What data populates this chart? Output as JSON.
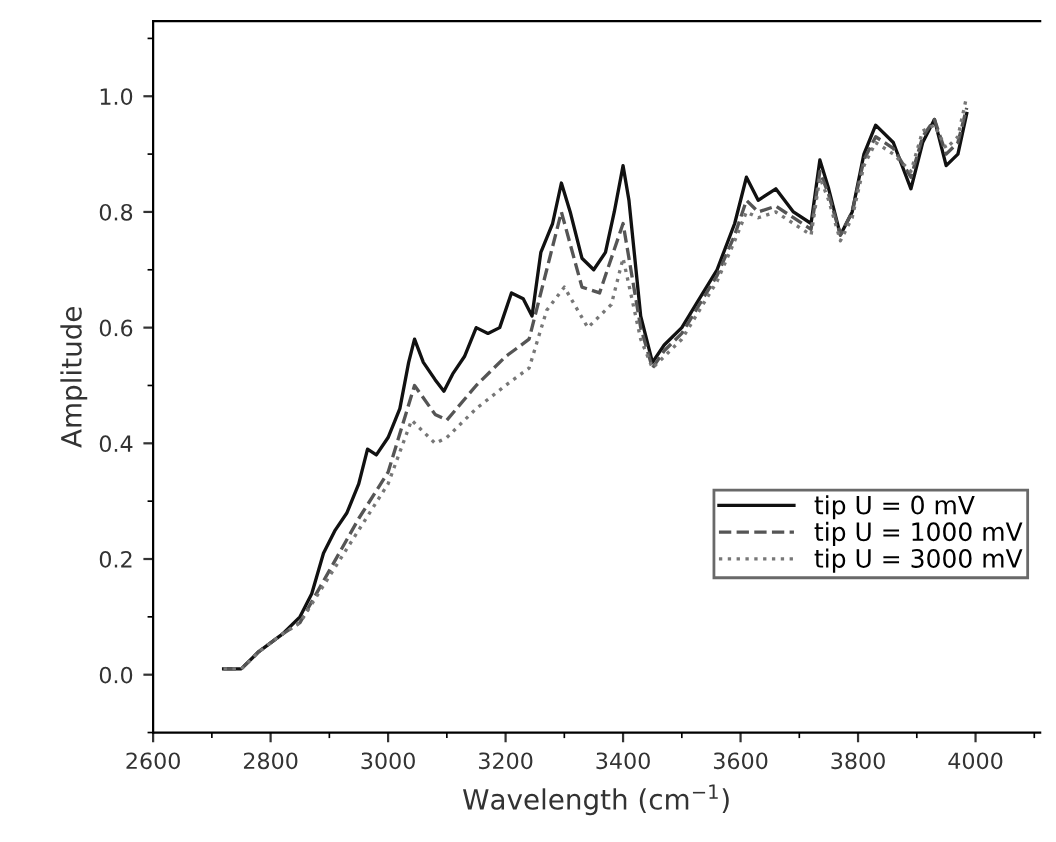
{
  "chart_data": {
    "type": "line",
    "xlabel": "Wavelength (cm$^{−1}$)",
    "ylabel": "Amplitude",
    "xlim": [
      2600,
      4110
    ],
    "xticks": [
      2600,
      2800,
      3000,
      3200,
      3400,
      3600,
      3800,
      4000
    ],
    "ylim": [
      -0.1,
      1.13
    ],
    "yticks": [
      {
        "value": 0,
        "label": "0.0"
      },
      0.2,
      0.4,
      0.6,
      0.8,
      {
        "value": 1,
        "label": "1.0"
      }
    ],
    "grid": false,
    "legend": "bottom right",
    "series": [
      {
        "name": "tip U = 0 mV",
        "color": "#111111",
        "line_style": "solid",
        "x": [
          2720,
          2750,
          2780,
          2820,
          2850,
          2870,
          2890,
          2910,
          2930,
          2950,
          2965,
          2980,
          3000,
          3020,
          3035,
          3045,
          3060,
          3080,
          3095,
          3110,
          3130,
          3150,
          3170,
          3190,
          3210,
          3230,
          3245,
          3260,
          3280,
          3295,
          3310,
          3330,
          3350,
          3370,
          3385,
          3400,
          3410,
          3430,
          3450,
          3470,
          3500,
          3530,
          3560,
          3590,
          3610,
          3630,
          3660,
          3690,
          3720,
          3735,
          3750,
          3770,
          3790,
          3810,
          3830,
          3860,
          3890,
          3910,
          3930,
          3950,
          3970,
          3985
        ],
        "values": [
          0.01,
          0.01,
          0.04,
          0.07,
          0.1,
          0.14,
          0.21,
          0.25,
          0.28,
          0.33,
          0.39,
          0.38,
          0.41,
          0.46,
          0.54,
          0.58,
          0.54,
          0.51,
          0.49,
          0.52,
          0.55,
          0.6,
          0.59,
          0.6,
          0.66,
          0.65,
          0.62,
          0.73,
          0.78,
          0.85,
          0.8,
          0.72,
          0.7,
          0.73,
          0.8,
          0.88,
          0.82,
          0.62,
          0.54,
          0.57,
          0.6,
          0.65,
          0.7,
          0.78,
          0.86,
          0.82,
          0.84,
          0.8,
          0.78,
          0.89,
          0.84,
          0.76,
          0.8,
          0.9,
          0.95,
          0.92,
          0.84,
          0.92,
          0.96,
          0.88,
          0.9,
          0.97
        ]
      },
      {
        "name": "tip U = 1000 mV",
        "color": "#555555",
        "line_style": "dashed",
        "x": [
          2720,
          2750,
          2780,
          2820,
          2850,
          2900,
          2950,
          3000,
          3030,
          3045,
          3080,
          3100,
          3150,
          3200,
          3240,
          3270,
          3295,
          3330,
          3360,
          3400,
          3430,
          3450,
          3470,
          3500,
          3530,
          3560,
          3590,
          3610,
          3630,
          3660,
          3690,
          3720,
          3735,
          3750,
          3770,
          3790,
          3810,
          3830,
          3860,
          3890,
          3910,
          3930,
          3950,
          3970,
          3985
        ],
        "values": [
          0.01,
          0.01,
          0.04,
          0.07,
          0.09,
          0.18,
          0.27,
          0.35,
          0.45,
          0.5,
          0.45,
          0.44,
          0.5,
          0.55,
          0.58,
          0.7,
          0.8,
          0.67,
          0.66,
          0.78,
          0.6,
          0.53,
          0.56,
          0.59,
          0.64,
          0.69,
          0.76,
          0.82,
          0.8,
          0.81,
          0.79,
          0.77,
          0.87,
          0.83,
          0.76,
          0.8,
          0.89,
          0.93,
          0.91,
          0.86,
          0.93,
          0.96,
          0.9,
          0.92,
          0.98
        ]
      },
      {
        "name": "tip U = 3000 mV",
        "color": "#777777",
        "line_style": "dotted",
        "x": [
          2720,
          2750,
          2780,
          2820,
          2850,
          2900,
          2950,
          3000,
          3040,
          3080,
          3100,
          3150,
          3200,
          3240,
          3270,
          3300,
          3340,
          3380,
          3400,
          3430,
          3450,
          3470,
          3500,
          3530,
          3560,
          3590,
          3610,
          3630,
          3660,
          3690,
          3720,
          3735,
          3750,
          3770,
          3790,
          3810,
          3830,
          3860,
          3890,
          3910,
          3930,
          3950,
          3970,
          3985
        ],
        "values": [
          0.01,
          0.01,
          0.04,
          0.07,
          0.09,
          0.17,
          0.25,
          0.33,
          0.44,
          0.4,
          0.41,
          0.46,
          0.5,
          0.53,
          0.63,
          0.67,
          0.6,
          0.64,
          0.72,
          0.58,
          0.53,
          0.55,
          0.58,
          0.63,
          0.68,
          0.75,
          0.8,
          0.79,
          0.8,
          0.78,
          0.76,
          0.86,
          0.82,
          0.75,
          0.79,
          0.88,
          0.92,
          0.9,
          0.87,
          0.94,
          0.95,
          0.91,
          0.93,
          1.0
        ]
      }
    ]
  }
}
